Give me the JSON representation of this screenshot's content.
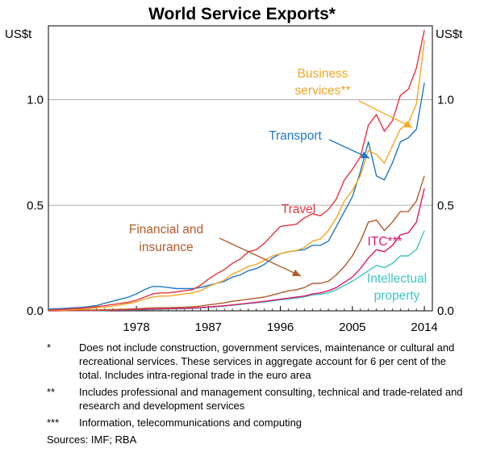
{
  "chart_data": {
    "type": "line",
    "title": "World Service Exports*",
    "ylabel_left": "US$t",
    "ylabel_right": "US$t",
    "x_range": [
      1967,
      2015
    ],
    "ylim": [
      0,
      1.35
    ],
    "x_ticks": [
      {
        "value": 1978,
        "label": "1978"
      },
      {
        "value": 1987,
        "label": "1987"
      },
      {
        "value": 1996,
        "label": "1996"
      },
      {
        "value": 2005,
        "label": "2005"
      },
      {
        "value": 2014,
        "label": "2014"
      }
    ],
    "y_ticks": [
      {
        "value": 0,
        "label": "0.0"
      },
      {
        "value": 0.5,
        "label": "0.5"
      },
      {
        "value": 1.0,
        "label": "1.0"
      }
    ],
    "grid": true,
    "x": [
      1967,
      1968,
      1969,
      1970,
      1971,
      1972,
      1973,
      1974,
      1975,
      1976,
      1977,
      1978,
      1979,
      1980,
      1981,
      1982,
      1983,
      1984,
      1985,
      1986,
      1987,
      1988,
      1989,
      1990,
      1991,
      1992,
      1993,
      1994,
      1995,
      1996,
      1997,
      1998,
      1999,
      2000,
      2001,
      2002,
      2003,
      2004,
      2005,
      2006,
      2007,
      2008,
      2009,
      2010,
      2011,
      2012,
      2013,
      2014
    ],
    "series": [
      {
        "name": "Travel",
        "color": "#e8343f",
        "values": [
          0.003,
          0.005,
          0.007,
          0.01,
          0.012,
          0.015,
          0.02,
          0.024,
          0.03,
          0.035,
          0.04,
          0.05,
          0.065,
          0.08,
          0.085,
          0.085,
          0.09,
          0.095,
          0.1,
          0.12,
          0.15,
          0.175,
          0.195,
          0.225,
          0.245,
          0.28,
          0.29,
          0.32,
          0.36,
          0.4,
          0.405,
          0.41,
          0.44,
          0.46,
          0.45,
          0.48,
          0.53,
          0.62,
          0.67,
          0.73,
          0.88,
          0.93,
          0.85,
          0.9,
          1.02,
          1.05,
          1.15,
          1.33
        ]
      },
      {
        "name": "Business services**",
        "color": "#f5a623",
        "values": [
          0.002,
          0.003,
          0.004,
          0.006,
          0.008,
          0.01,
          0.014,
          0.017,
          0.022,
          0.028,
          0.034,
          0.042,
          0.055,
          0.065,
          0.07,
          0.07,
          0.075,
          0.08,
          0.085,
          0.095,
          0.115,
          0.13,
          0.145,
          0.175,
          0.19,
          0.21,
          0.22,
          0.24,
          0.26,
          0.27,
          0.28,
          0.285,
          0.3,
          0.33,
          0.34,
          0.38,
          0.44,
          0.52,
          0.57,
          0.64,
          0.76,
          0.74,
          0.7,
          0.78,
          0.86,
          0.89,
          0.98,
          1.28
        ]
      },
      {
        "name": "Transport",
        "color": "#1f77c4",
        "values": [
          0.008,
          0.01,
          0.012,
          0.014,
          0.016,
          0.02,
          0.025,
          0.035,
          0.045,
          0.055,
          0.065,
          0.08,
          0.1,
          0.115,
          0.115,
          0.11,
          0.105,
          0.105,
          0.105,
          0.11,
          0.12,
          0.13,
          0.14,
          0.16,
          0.17,
          0.19,
          0.2,
          0.22,
          0.25,
          0.27,
          0.28,
          0.285,
          0.29,
          0.31,
          0.31,
          0.33,
          0.4,
          0.47,
          0.54,
          0.66,
          0.8,
          0.64,
          0.62,
          0.7,
          0.8,
          0.82,
          0.86,
          1.08
        ]
      },
      {
        "name": "Financial and insurance",
        "color": "#b35a2a",
        "values": [
          0.001,
          0.001,
          0.002,
          0.002,
          0.003,
          0.003,
          0.004,
          0.005,
          0.006,
          0.007,
          0.008,
          0.01,
          0.012,
          0.014,
          0.015,
          0.015,
          0.016,
          0.017,
          0.019,
          0.022,
          0.028,
          0.033,
          0.038,
          0.045,
          0.05,
          0.055,
          0.06,
          0.065,
          0.075,
          0.085,
          0.095,
          0.1,
          0.11,
          0.13,
          0.13,
          0.14,
          0.17,
          0.21,
          0.26,
          0.33,
          0.42,
          0.43,
          0.38,
          0.42,
          0.47,
          0.47,
          0.52,
          0.64
        ]
      },
      {
        "name": "ITC***",
        "color": "#e0166b",
        "values": [
          0.0,
          0.0,
          0.001,
          0.001,
          0.001,
          0.002,
          0.002,
          0.003,
          0.003,
          0.004,
          0.005,
          0.006,
          0.007,
          0.008,
          0.009,
          0.01,
          0.011,
          0.012,
          0.013,
          0.015,
          0.018,
          0.021,
          0.024,
          0.028,
          0.032,
          0.036,
          0.04,
          0.045,
          0.05,
          0.055,
          0.06,
          0.065,
          0.07,
          0.08,
          0.085,
          0.095,
          0.11,
          0.135,
          0.16,
          0.2,
          0.25,
          0.29,
          0.28,
          0.31,
          0.36,
          0.37,
          0.42,
          0.58
        ]
      },
      {
        "name": "Intellectual property",
        "color": "#3cc6c0",
        "values": [
          0.0,
          0.001,
          0.001,
          0.001,
          0.001,
          0.002,
          0.002,
          0.002,
          0.003,
          0.003,
          0.004,
          0.004,
          0.005,
          0.006,
          0.007,
          0.008,
          0.009,
          0.01,
          0.011,
          0.013,
          0.016,
          0.019,
          0.022,
          0.026,
          0.03,
          0.034,
          0.038,
          0.042,
          0.047,
          0.052,
          0.056,
          0.06,
          0.066,
          0.075,
          0.078,
          0.085,
          0.1,
          0.12,
          0.14,
          0.165,
          0.19,
          0.215,
          0.205,
          0.225,
          0.26,
          0.26,
          0.29,
          0.38
        ]
      }
    ],
    "series_labels": [
      {
        "series": "Business services**",
        "lines": [
          "Business",
          "services**"
        ],
        "color": "#f5a623"
      },
      {
        "series": "Transport",
        "lines": [
          "Transport"
        ],
        "color": "#1f77c4"
      },
      {
        "series": "Travel",
        "lines": [
          "Travel"
        ],
        "color": "#e8343f"
      },
      {
        "series": "Financial and insurance",
        "lines": [
          "Financial and",
          "insurance"
        ],
        "color": "#b35a2a"
      },
      {
        "series": "ITC***",
        "lines": [
          "ITC***"
        ],
        "color": "#e0166b"
      },
      {
        "series": "Intellectual property",
        "lines": [
          "Intellectual",
          "property"
        ],
        "color": "#3cc6c0"
      }
    ]
  },
  "notes": [
    {
      "mark": "*",
      "text": "Does not include construction, government services, maintenance or cultural and recreational services. These services in aggregate account for 6 per cent of the total. Includes intra-regional trade in the euro area"
    },
    {
      "mark": "**",
      "text": "Includes professional and management consulting, technical and trade-related and research and development services"
    },
    {
      "mark": "***",
      "text": "Information, telecommunications and computing"
    }
  ],
  "sources": "Sources:  IMF; RBA"
}
